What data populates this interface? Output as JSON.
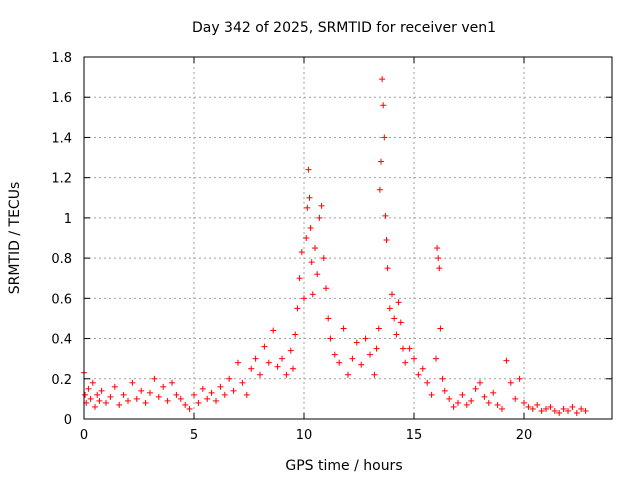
{
  "chart_data": {
    "type": "scatter",
    "title": "Day 342 of 2025, SRMTID for receiver ven1",
    "xlabel": "GPS time / hours",
    "ylabel": "SRMTID / TECUs",
    "xlim": [
      0,
      24
    ],
    "ylim": [
      0,
      1.8
    ],
    "x_ticks": [
      0,
      5,
      10,
      15,
      20
    ],
    "x_tick_labels": [
      "0",
      "5",
      "10",
      "15",
      "20"
    ],
    "y_ticks": [
      0,
      0.2,
      0.4,
      0.6,
      0.8,
      1.0,
      1.2,
      1.4,
      1.6,
      1.8
    ],
    "y_tick_labels": [
      "0",
      "0.2",
      "0.4",
      "0.6",
      "0.8",
      "1",
      "1.2",
      "1.4",
      "1.6",
      "1.8"
    ],
    "grid": true,
    "marker": "+",
    "series": [
      {
        "name": "ven1",
        "color": "#ff0000",
        "x": [
          0.0,
          0.05,
          0.1,
          0.2,
          0.3,
          0.4,
          0.5,
          0.6,
          0.7,
          0.8,
          1.0,
          1.2,
          1.4,
          1.6,
          1.8,
          2.0,
          2.2,
          2.4,
          2.6,
          2.8,
          3.0,
          3.2,
          3.4,
          3.6,
          3.8,
          4.0,
          4.2,
          4.4,
          4.6,
          4.8,
          5.0,
          5.2,
          5.4,
          5.6,
          5.8,
          6.0,
          6.2,
          6.4,
          6.6,
          6.8,
          7.0,
          7.2,
          7.4,
          7.6,
          7.8,
          8.0,
          8.2,
          8.4,
          8.6,
          8.8,
          9.0,
          9.2,
          9.4,
          9.5,
          9.6,
          9.7,
          9.8,
          9.9,
          10.0,
          10.1,
          10.15,
          10.2,
          10.25,
          10.3,
          10.35,
          10.4,
          10.5,
          10.6,
          10.7,
          10.8,
          10.9,
          11.0,
          11.1,
          11.2,
          11.4,
          11.6,
          11.8,
          12.0,
          12.2,
          12.4,
          12.6,
          12.8,
          13.0,
          13.2,
          13.3,
          13.4,
          13.45,
          13.5,
          13.55,
          13.6,
          13.65,
          13.7,
          13.75,
          13.8,
          13.9,
          14.0,
          14.1,
          14.2,
          14.3,
          14.4,
          14.5,
          14.6,
          14.8,
          15.0,
          15.2,
          15.4,
          15.6,
          15.8,
          16.0,
          16.05,
          16.1,
          16.15,
          16.2,
          16.3,
          16.4,
          16.6,
          16.8,
          17.0,
          17.2,
          17.4,
          17.6,
          17.8,
          18.0,
          18.2,
          18.4,
          18.6,
          18.8,
          19.0,
          19.2,
          19.4,
          19.6,
          19.8,
          20.0,
          20.2,
          20.4,
          20.6,
          20.8,
          21.0,
          21.2,
          21.4,
          21.6,
          21.8,
          22.0,
          22.2,
          22.4,
          22.6,
          22.8
        ],
        "y": [
          0.23,
          0.12,
          0.08,
          0.15,
          0.1,
          0.18,
          0.06,
          0.12,
          0.09,
          0.14,
          0.08,
          0.11,
          0.16,
          0.07,
          0.12,
          0.09,
          0.18,
          0.1,
          0.14,
          0.08,
          0.13,
          0.2,
          0.11,
          0.16,
          0.09,
          0.18,
          0.12,
          0.1,
          0.07,
          0.05,
          0.12,
          0.08,
          0.15,
          0.1,
          0.13,
          0.09,
          0.16,
          0.12,
          0.2,
          0.14,
          0.28,
          0.18,
          0.12,
          0.25,
          0.3,
          0.22,
          0.36,
          0.28,
          0.44,
          0.26,
          0.3,
          0.22,
          0.34,
          0.25,
          0.42,
          0.55,
          0.7,
          0.83,
          0.6,
          0.9,
          1.05,
          1.24,
          1.1,
          0.95,
          0.78,
          0.62,
          0.85,
          0.72,
          1.0,
          1.06,
          0.8,
          0.65,
          0.5,
          0.4,
          0.32,
          0.28,
          0.45,
          0.22,
          0.3,
          0.38,
          0.27,
          0.4,
          0.32,
          0.22,
          0.35,
          0.45,
          1.14,
          1.28,
          1.69,
          1.56,
          1.4,
          1.01,
          0.89,
          0.75,
          0.55,
          0.62,
          0.5,
          0.42,
          0.58,
          0.48,
          0.35,
          0.28,
          0.35,
          0.3,
          0.22,
          0.25,
          0.18,
          0.12,
          0.3,
          0.85,
          0.8,
          0.75,
          0.45,
          0.2,
          0.14,
          0.1,
          0.06,
          0.08,
          0.12,
          0.07,
          0.09,
          0.15,
          0.18,
          0.11,
          0.08,
          0.13,
          0.07,
          0.05,
          0.29,
          0.18,
          0.1,
          0.2,
          0.08,
          0.06,
          0.05,
          0.07,
          0.04,
          0.05,
          0.06,
          0.04,
          0.03,
          0.05,
          0.04,
          0.06,
          0.03,
          0.05,
          0.04
        ]
      }
    ]
  }
}
